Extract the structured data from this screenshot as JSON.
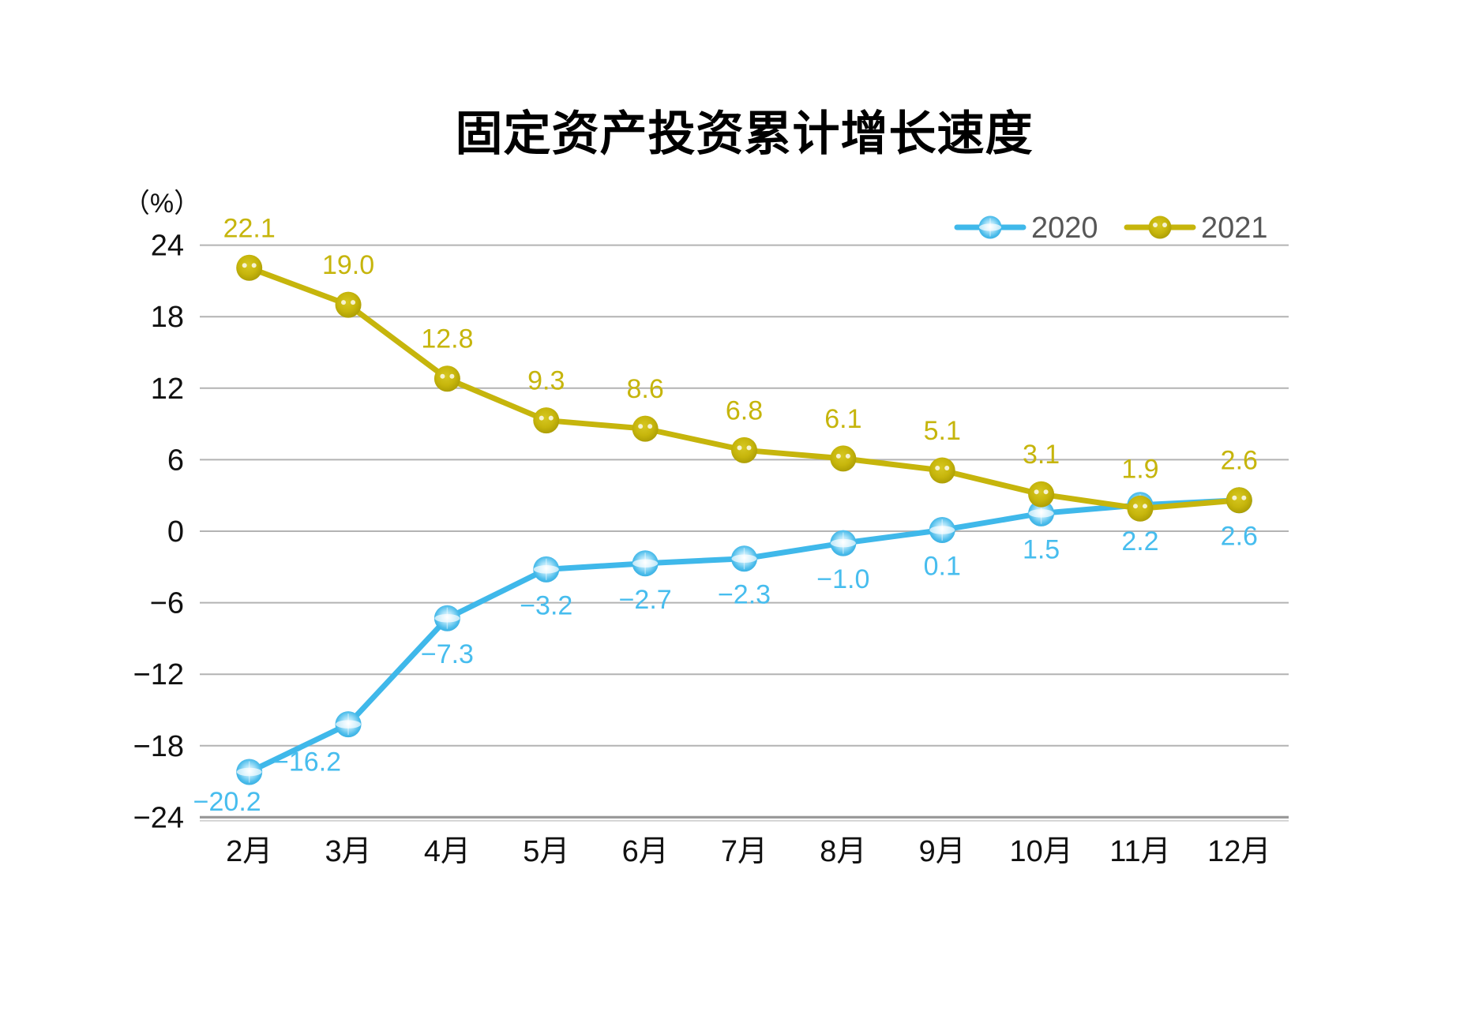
{
  "chart_data": {
    "type": "line",
    "title": "固定资产投资累计增长速度",
    "unit_label": "（%）",
    "categories": [
      "2月",
      "3月",
      "4月",
      "5月",
      "6月",
      "7月",
      "8月",
      "9月",
      "10月",
      "11月",
      "12月"
    ],
    "series": [
      {
        "name": "2020",
        "color": "#3fb8ea",
        "label_color": "#47bdee",
        "values": [
          -20.2,
          -16.2,
          -7.3,
          -3.2,
          -2.7,
          -2.3,
          -1.0,
          0.1,
          1.5,
          2.2,
          2.6
        ]
      },
      {
        "name": "2021",
        "color": "#c6b50c",
        "label_color": "#c6b50c",
        "values": [
          22.1,
          19.0,
          12.8,
          9.3,
          8.6,
          6.8,
          6.1,
          5.1,
          3.1,
          1.9,
          2.6
        ]
      }
    ],
    "ylim": [
      -24,
      24
    ],
    "y_ticks": [
      24,
      18,
      12,
      6,
      0,
      -6,
      -12,
      -18,
      -24
    ],
    "grid": true,
    "legend_position": "top-right",
    "gridline_color": "#b3b3b3",
    "axis_line_color": "#9a9a9a",
    "axis_shadow_color": "#d2d2d2",
    "tick_label_color": "#111111",
    "legend_text_color": "#575757"
  }
}
